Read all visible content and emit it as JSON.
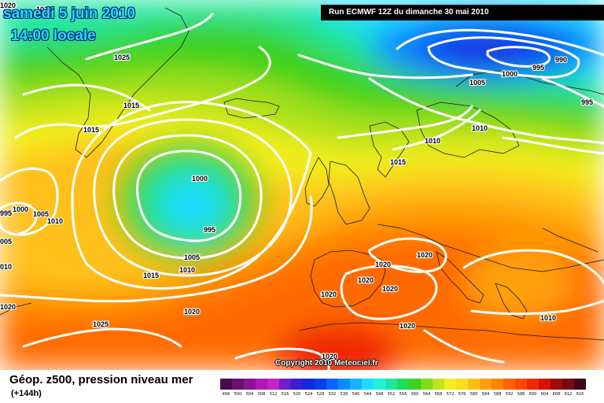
{
  "header": {
    "date": "samedi 5 juin 2010",
    "time": "14:00 locale",
    "run": "Run ECMWF 12Z du dimanche 30 mai 2010"
  },
  "copyright": "Copyright 2010 Meteociel.fr",
  "footer": {
    "title": "Géop. z500, pression niveau mer",
    "step": "(+144h)"
  },
  "legend": {
    "labels": [
      "496",
      "500",
      "504",
      "508",
      "512",
      "516",
      "520",
      "524",
      "528",
      "532",
      "536",
      "540",
      "544",
      "548",
      "552",
      "556",
      "560",
      "564",
      "568",
      "572",
      "576",
      "580",
      "584",
      "588",
      "592",
      "596",
      "600",
      "604",
      "608",
      "612",
      "616"
    ],
    "colors": [
      "#4a0c4a",
      "#6a106e",
      "#8c1490",
      "#b018b4",
      "#c81ec8",
      "#6e1ec8",
      "#3a1ed2",
      "#1428dc",
      "#0a3cf0",
      "#0a64ff",
      "#0a8cff",
      "#14b4ff",
      "#1edcff",
      "#1ef0dc",
      "#1ee6a0",
      "#1edc5a",
      "#3cd21e",
      "#82dc14",
      "#bee61e",
      "#f0f01e",
      "#ffdc1e",
      "#ffbe14",
      "#ffa00a",
      "#ff8200",
      "#ff6400",
      "#ff4600",
      "#f02800",
      "#d21400",
      "#a00a0a",
      "#780a14",
      "#3c0a14"
    ]
  },
  "isobar_labels": [
    {
      "text": "1020"
    },
    {
      "text": "1030"
    },
    {
      "text": "1025"
    },
    {
      "text": "1015"
    },
    {
      "text": "1015"
    },
    {
      "text": "1000"
    },
    {
      "text": "995"
    },
    {
      "text": "1005"
    },
    {
      "text": "1010"
    },
    {
      "text": "1015"
    },
    {
      "text": "995"
    },
    {
      "text": "1000"
    },
    {
      "text": "1005"
    },
    {
      "text": "1010"
    },
    {
      "text": "005"
    },
    {
      "text": "010"
    },
    {
      "text": "1020"
    },
    {
      "text": "1025"
    },
    {
      "text": "1020"
    },
    {
      "text": "1020"
    },
    {
      "text": "1000"
    },
    {
      "text": "995"
    },
    {
      "text": "990"
    },
    {
      "text": "1005"
    },
    {
      "text": "995"
    },
    {
      "text": "1010"
    },
    {
      "text": "1010"
    },
    {
      "text": "1015"
    },
    {
      "text": "1020"
    },
    {
      "text": "1020"
    },
    {
      "text": "1020"
    },
    {
      "text": "1020"
    },
    {
      "text": "1020"
    },
    {
      "text": "1020"
    },
    {
      "text": "1010"
    }
  ]
}
